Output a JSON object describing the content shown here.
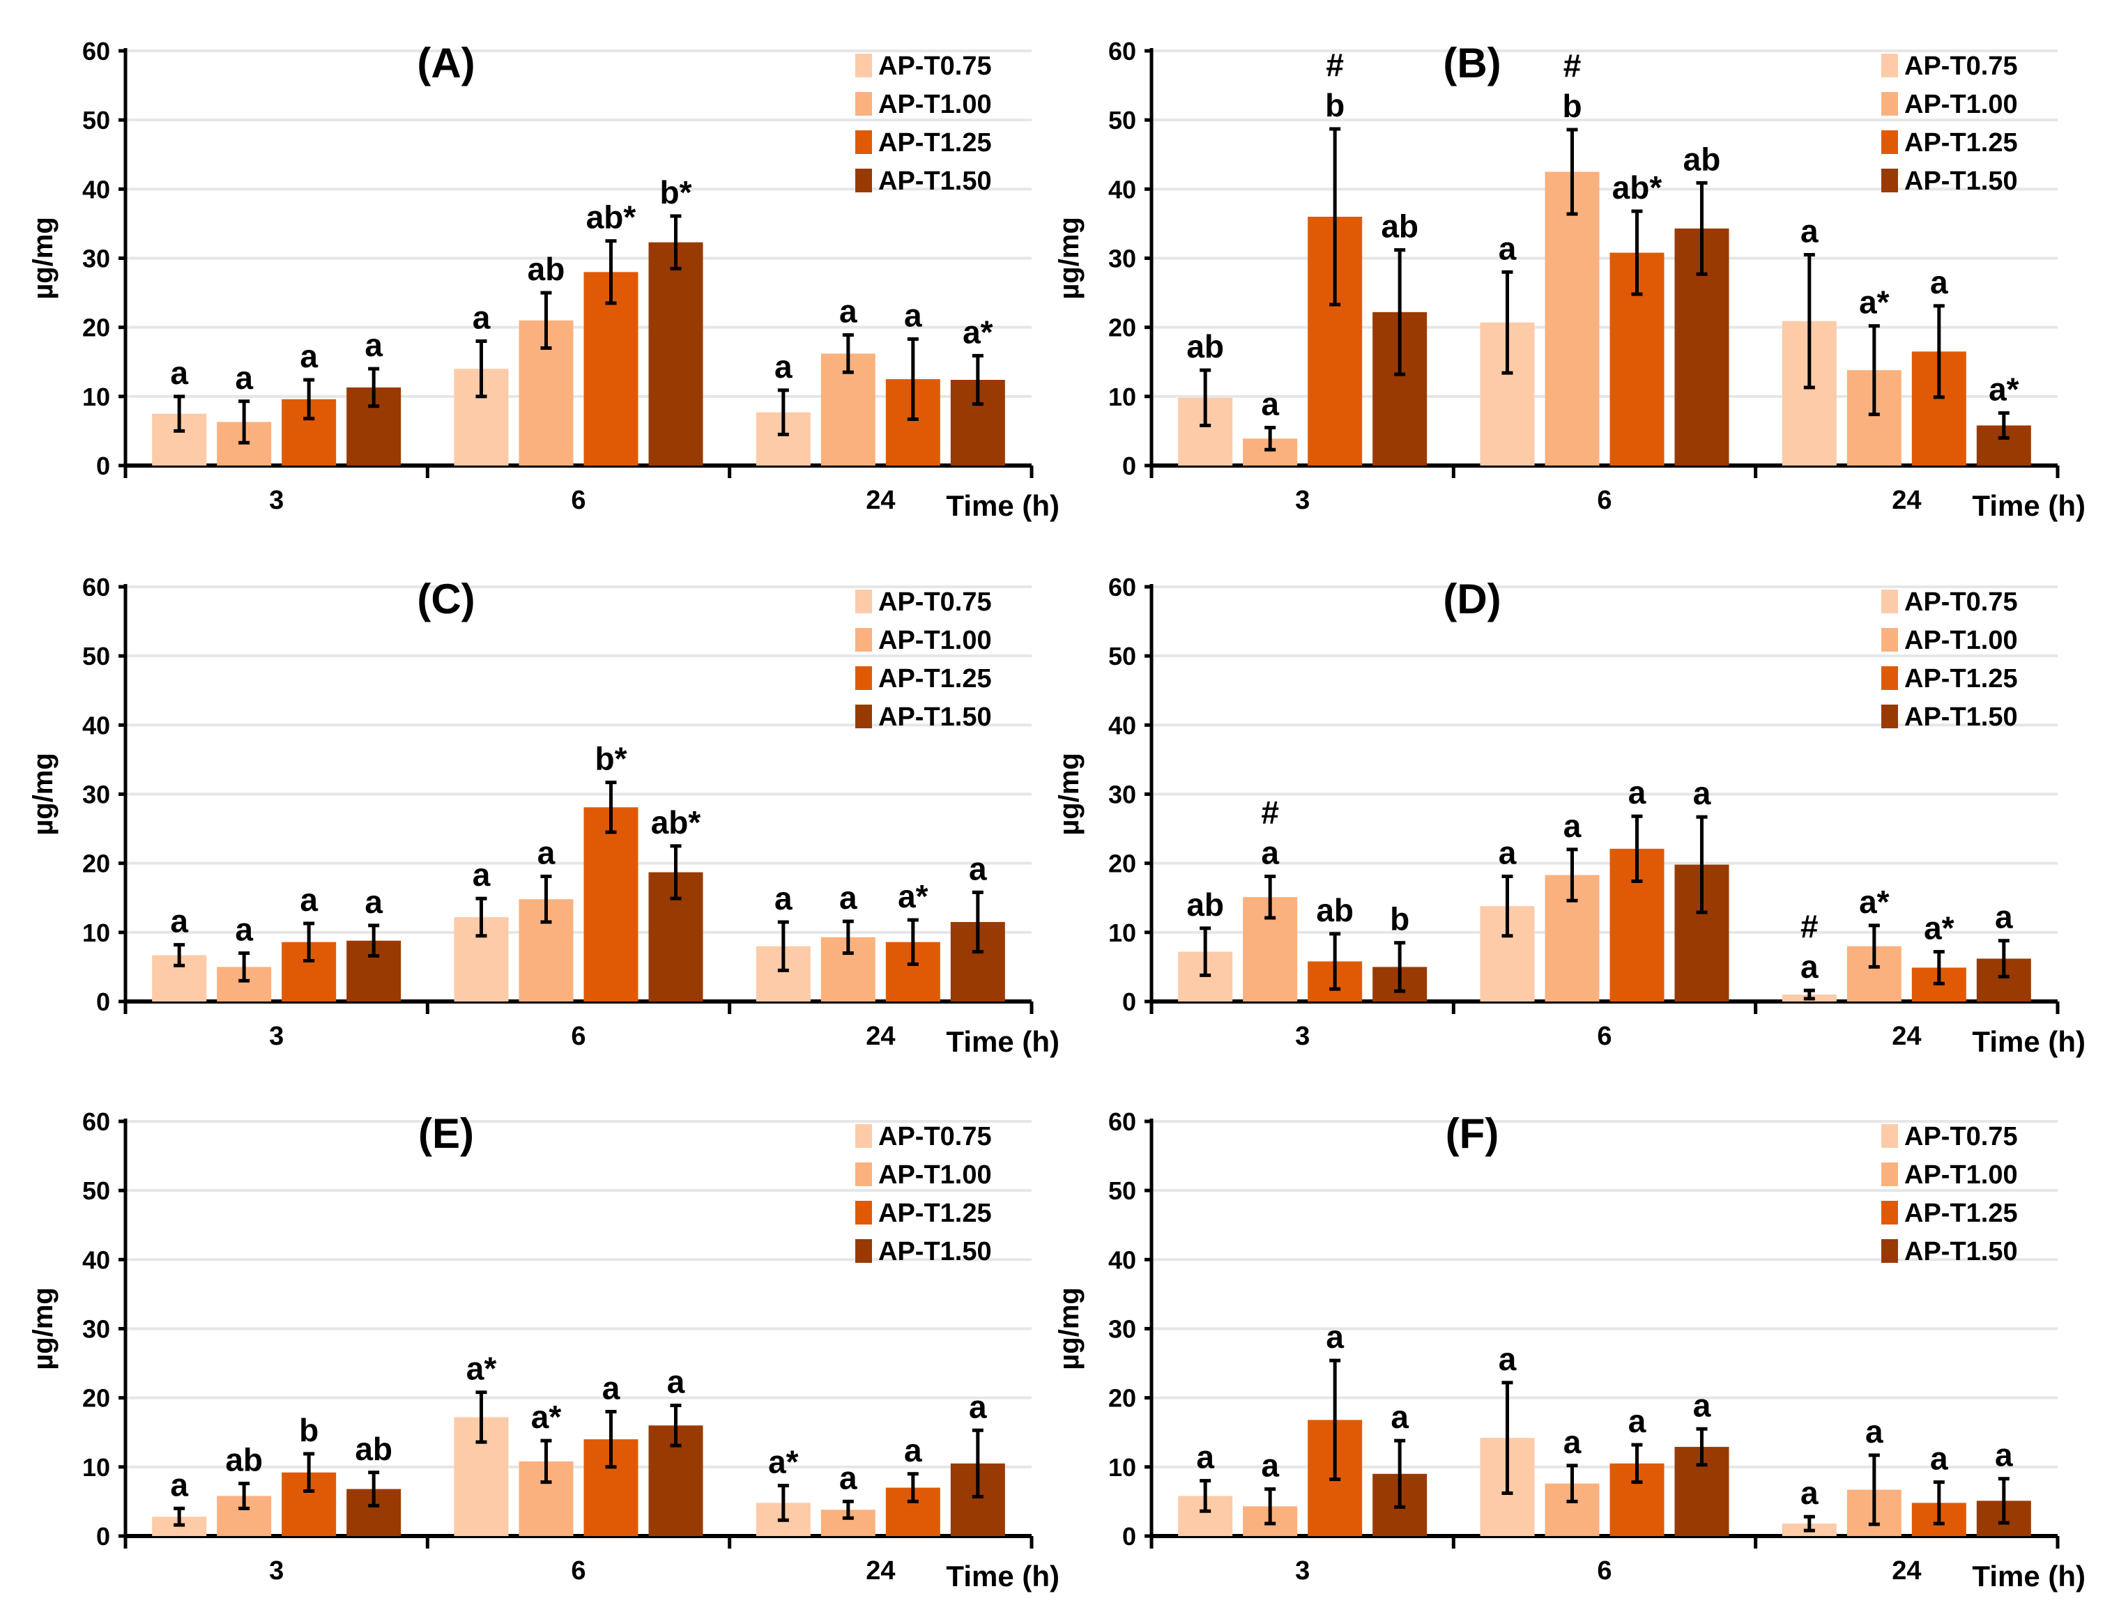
{
  "colors": {
    "AP-T0.75": "#FDCBA8",
    "AP-T1.00": "#FBB17E",
    "AP-T1.25": "#E05A06",
    "AP-T1.50": "#993A03"
  },
  "chart_data": [
    {
      "type": "bar",
      "title": "(A)",
      "ylabel": "µg/mg",
      "xlabel": "Time (h)",
      "ylim": [
        0,
        60
      ],
      "yticks": [
        0,
        10,
        20,
        30,
        40,
        50,
        60
      ],
      "categories": [
        "3",
        "6",
        "24"
      ],
      "legend_position": "top-right",
      "grid": true,
      "series": [
        {
          "name": "AP-T0.75",
          "values": [
            7.5,
            14.0,
            7.7
          ],
          "errors": [
            2.5,
            4.0,
            3.2
          ],
          "letters": [
            "a",
            "a",
            "a"
          ]
        },
        {
          "name": "AP-T1.00",
          "values": [
            6.3,
            21.0,
            16.2
          ],
          "errors": [
            3.0,
            4.0,
            2.7
          ],
          "letters": [
            "a",
            "ab",
            "a"
          ]
        },
        {
          "name": "AP-T1.25",
          "values": [
            9.6,
            28.0,
            12.5
          ],
          "errors": [
            2.8,
            4.5,
            5.8
          ],
          "letters": [
            "a",
            "ab*",
            "a"
          ]
        },
        {
          "name": "AP-T1.50",
          "values": [
            11.3,
            32.3,
            12.4
          ],
          "errors": [
            2.7,
            3.8,
            3.5
          ],
          "letters": [
            "a",
            "b*",
            "a*"
          ]
        }
      ]
    },
    {
      "type": "bar",
      "title": "(B)",
      "ylabel": "µg/mg",
      "xlabel": "Time (h)",
      "ylim": [
        0,
        60
      ],
      "yticks": [
        0,
        10,
        20,
        30,
        40,
        50,
        60
      ],
      "categories": [
        "3",
        "6",
        "24"
      ],
      "legend_position": "top-right",
      "grid": true,
      "series": [
        {
          "name": "AP-T0.75",
          "values": [
            9.8,
            20.7,
            20.9
          ],
          "errors": [
            4.0,
            7.3,
            9.6
          ],
          "letters": [
            "ab",
            "a",
            "a"
          ]
        },
        {
          "name": "AP-T1.00",
          "values": [
            3.9,
            42.5,
            13.8
          ],
          "errors": [
            1.6,
            6.1,
            6.4
          ],
          "letters": [
            "a",
            "#b",
            "a*"
          ]
        },
        {
          "name": "AP-T1.25",
          "values": [
            36.0,
            30.8,
            16.5
          ],
          "errors": [
            12.7,
            6.0,
            6.6
          ],
          "letters": [
            "#b",
            "ab*",
            "a"
          ]
        },
        {
          "name": "AP-T1.50",
          "values": [
            22.2,
            34.3,
            5.8
          ],
          "errors": [
            9.0,
            6.6,
            1.8
          ],
          "letters": [
            "ab",
            "ab",
            "a*"
          ]
        }
      ]
    },
    {
      "type": "bar",
      "title": "(C)",
      "ylabel": "µg/mg",
      "xlabel": "Time (h)",
      "ylim": [
        0,
        60
      ],
      "yticks": [
        0,
        10,
        20,
        30,
        40,
        50,
        60
      ],
      "categories": [
        "3",
        "6",
        "24"
      ],
      "legend_position": "top-right",
      "grid": true,
      "series": [
        {
          "name": "AP-T0.75",
          "values": [
            6.7,
            12.2,
            8.0
          ],
          "errors": [
            1.5,
            2.7,
            3.5
          ],
          "letters": [
            "a",
            "a",
            "a"
          ]
        },
        {
          "name": "AP-T1.00",
          "values": [
            5.0,
            14.8,
            9.3
          ],
          "errors": [
            2.0,
            3.3,
            2.3
          ],
          "letters": [
            "a",
            "a",
            "a"
          ]
        },
        {
          "name": "AP-T1.25",
          "values": [
            8.6,
            28.1,
            8.6
          ],
          "errors": [
            2.7,
            3.6,
            3.2
          ],
          "letters": [
            "a",
            "b*",
            "a*"
          ]
        },
        {
          "name": "AP-T1.50",
          "values": [
            8.8,
            18.7,
            11.5
          ],
          "errors": [
            2.2,
            3.8,
            4.3
          ],
          "letters": [
            "a",
            "ab*",
            "a"
          ]
        }
      ]
    },
    {
      "type": "bar",
      "title": "(D)",
      "ylabel": "µg/mg",
      "xlabel": "Time (h)",
      "ylim": [
        0,
        60
      ],
      "yticks": [
        0,
        10,
        20,
        30,
        40,
        50,
        60
      ],
      "categories": [
        "3",
        "6",
        "24"
      ],
      "legend_position": "top-right",
      "grid": true,
      "series": [
        {
          "name": "AP-T0.75",
          "values": [
            7.2,
            13.8,
            1.0
          ],
          "errors": [
            3.4,
            4.3,
            0.6
          ],
          "letters": [
            "ab",
            "a",
            "#a"
          ]
        },
        {
          "name": "AP-T1.00",
          "values": [
            15.1,
            18.3,
            8.0
          ],
          "errors": [
            3.0,
            3.7,
            3.0
          ],
          "letters": [
            "#a",
            "a",
            "a*"
          ]
        },
        {
          "name": "AP-T1.25",
          "values": [
            5.8,
            22.1,
            4.9
          ],
          "errors": [
            4.0,
            4.7,
            2.3
          ],
          "letters": [
            "ab",
            "a",
            "a*"
          ]
        },
        {
          "name": "AP-T1.50",
          "values": [
            5.0,
            19.8,
            6.2
          ],
          "errors": [
            3.5,
            6.9,
            2.6
          ],
          "letters": [
            "b",
            "a",
            "a"
          ]
        }
      ]
    },
    {
      "type": "bar",
      "title": "(E)",
      "ylabel": "µg/mg",
      "xlabel": "Time (h)",
      "ylim": [
        0,
        60
      ],
      "yticks": [
        0,
        10,
        20,
        30,
        40,
        50,
        60
      ],
      "categories": [
        "3",
        "6",
        "24"
      ],
      "legend_position": "top-right",
      "grid": true,
      "series": [
        {
          "name": "AP-T0.75",
          "values": [
            2.8,
            17.2,
            4.8
          ],
          "errors": [
            1.2,
            3.6,
            2.5
          ],
          "letters": [
            "a",
            "a*",
            "a*"
          ]
        },
        {
          "name": "AP-T1.00",
          "values": [
            5.8,
            10.8,
            3.8
          ],
          "errors": [
            1.8,
            3.0,
            1.2
          ],
          "letters": [
            "ab",
            "a*",
            "a"
          ]
        },
        {
          "name": "AP-T1.25",
          "values": [
            9.2,
            14.0,
            7.0
          ],
          "errors": [
            2.7,
            4.0,
            2.0
          ],
          "letters": [
            "b",
            "a",
            "a"
          ]
        },
        {
          "name": "AP-T1.50",
          "values": [
            6.8,
            16.0,
            10.5
          ],
          "errors": [
            2.4,
            2.9,
            4.8
          ],
          "letters": [
            "ab",
            "a",
            "a"
          ]
        }
      ]
    },
    {
      "type": "bar",
      "title": "(F)",
      "ylabel": "µg/mg",
      "xlabel": "Time (h)",
      "ylim": [
        0,
        60
      ],
      "yticks": [
        0,
        10,
        20,
        30,
        40,
        50,
        60
      ],
      "categories": [
        "3",
        "6",
        "24"
      ],
      "legend_position": "top-right",
      "grid": true,
      "series": [
        {
          "name": "AP-T0.75",
          "values": [
            5.8,
            14.2,
            1.8
          ],
          "errors": [
            2.2,
            8.0,
            1.0
          ],
          "letters": [
            "a",
            "a",
            "a"
          ]
        },
        {
          "name": "AP-T1.00",
          "values": [
            4.3,
            7.6,
            6.7
          ],
          "errors": [
            2.5,
            2.6,
            5.0
          ],
          "letters": [
            "a",
            "a",
            "a"
          ]
        },
        {
          "name": "AP-T1.25",
          "values": [
            16.8,
            10.5,
            4.8
          ],
          "errors": [
            8.6,
            2.7,
            3.0
          ],
          "letters": [
            "a",
            "a",
            "a"
          ]
        },
        {
          "name": "AP-T1.50",
          "values": [
            9.0,
            12.9,
            5.1
          ],
          "errors": [
            4.8,
            2.6,
            3.2
          ],
          "letters": [
            "a",
            "a",
            "a"
          ]
        }
      ]
    }
  ]
}
